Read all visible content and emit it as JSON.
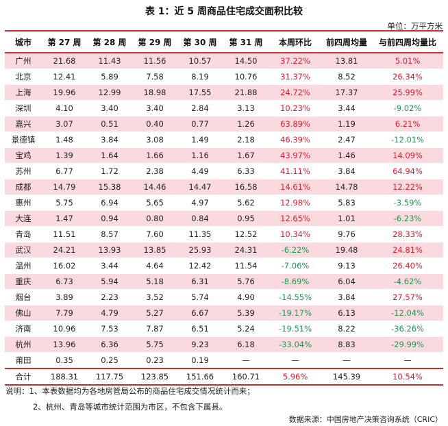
{
  "title": "表 1：近 5 周商品住宅成交面积比较",
  "unit": "单位：万平方米",
  "headers": [
    "城市",
    "第 27 周",
    "第 28 周",
    "第 29 周",
    "第 30 周",
    "第 31 周",
    "本周环比",
    "前四周均量",
    "与前四周均量比"
  ],
  "rows": [
    {
      "city": "广州",
      "w27": "21.68",
      "w28": "11.43",
      "w29": "11.56",
      "w30": "10.57",
      "w31": "14.50",
      "wow": "37.22%",
      "avg4": "13.81",
      "vsavg": "5.01%",
      "hl": true,
      "wow_dir": "up",
      "vs_dir": "up"
    },
    {
      "city": "北京",
      "w27": "12.41",
      "w28": "5.89",
      "w29": "7.58",
      "w30": "8.19",
      "w31": "10.76",
      "wow": "31.37%",
      "avg4": "8.52",
      "vsavg": "26.34%",
      "hl": false,
      "wow_dir": "up",
      "vs_dir": "up"
    },
    {
      "city": "上海",
      "w27": "19.96",
      "w28": "12.99",
      "w29": "18.98",
      "w30": "17.55",
      "w31": "21.88",
      "wow": "24.72%",
      "avg4": "17.37",
      "vsavg": "25.99%",
      "hl": true,
      "wow_dir": "up",
      "vs_dir": "up"
    },
    {
      "city": "深圳",
      "w27": "4.10",
      "w28": "3.40",
      "w29": "3.40",
      "w30": "2.84",
      "w31": "3.13",
      "wow": "10.23%",
      "avg4": "3.44",
      "vsavg": "-9.02%",
      "hl": false,
      "wow_dir": "up",
      "vs_dir": "down"
    },
    {
      "city": "嘉兴",
      "w27": "3.07",
      "w28": "0.51",
      "w29": "0.40",
      "w30": "0.77",
      "w31": "1.26",
      "wow": "63.89%",
      "avg4": "1.19",
      "vsavg": "6.21%",
      "hl": true,
      "wow_dir": "up",
      "vs_dir": "up"
    },
    {
      "city": "景德镇",
      "w27": "1.48",
      "w28": "3.84",
      "w29": "3.08",
      "w30": "1.49",
      "w31": "2.18",
      "wow": "46.39%",
      "avg4": "2.47",
      "vsavg": "-12.01%",
      "hl": false,
      "wow_dir": "up",
      "vs_dir": "down"
    },
    {
      "city": "宝鸡",
      "w27": "1.39",
      "w28": "1.64",
      "w29": "1.66",
      "w30": "1.16",
      "w31": "1.67",
      "wow": "43.97%",
      "avg4": "1.46",
      "vsavg": "14.09%",
      "hl": true,
      "wow_dir": "up",
      "vs_dir": "up"
    },
    {
      "city": "苏州",
      "w27": "6.77",
      "w28": "1.72",
      "w29": "2.38",
      "w30": "4.49",
      "w31": "6.33",
      "wow": "41.11%",
      "avg4": "3.84",
      "vsavg": "64.94%",
      "hl": false,
      "wow_dir": "up",
      "vs_dir": "up"
    },
    {
      "city": "成都",
      "w27": "14.79",
      "w28": "15.38",
      "w29": "14.46",
      "w30": "14.47",
      "w31": "16.58",
      "wow": "14.61%",
      "avg4": "14.78",
      "vsavg": "12.22%",
      "hl": true,
      "wow_dir": "up",
      "vs_dir": "up"
    },
    {
      "city": "惠州",
      "w27": "5.75",
      "w28": "6.94",
      "w29": "5.65",
      "w30": "4.97",
      "w31": "5.62",
      "wow": "12.98%",
      "avg4": "5.83",
      "vsavg": "-3.59%",
      "hl": false,
      "wow_dir": "up",
      "vs_dir": "down"
    },
    {
      "city": "大连",
      "w27": "1.47",
      "w28": "0.94",
      "w29": "0.80",
      "w30": "0.84",
      "w31": "0.95",
      "wow": "12.65%",
      "avg4": "1.01",
      "vsavg": "-6.23%",
      "hl": true,
      "wow_dir": "up",
      "vs_dir": "down"
    },
    {
      "city": "青岛",
      "w27": "11.51",
      "w28": "8.57",
      "w29": "7.60",
      "w30": "11.35",
      "w31": "12.52",
      "wow": "10.34%",
      "avg4": "9.76",
      "vsavg": "28.33%",
      "hl": false,
      "wow_dir": "up",
      "vs_dir": "up"
    },
    {
      "city": "武汉",
      "w27": "24.21",
      "w28": "13.93",
      "w29": "13.85",
      "w30": "25.93",
      "w31": "24.31",
      "wow": "-6.22%",
      "avg4": "19.48",
      "vsavg": "24.81%",
      "hl": true,
      "wow_dir": "down",
      "vs_dir": "up"
    },
    {
      "city": "温州",
      "w27": "16.02",
      "w28": "3.44",
      "w29": "4.64",
      "w30": "12.42",
      "w31": "11.54",
      "wow": "-7.06%",
      "avg4": "9.13",
      "vsavg": "26.40%",
      "hl": false,
      "wow_dir": "down",
      "vs_dir": "up"
    },
    {
      "city": "重庆",
      "w27": "6.73",
      "w28": "5.94",
      "w29": "5.18",
      "w30": "6.31",
      "w31": "5.76",
      "wow": "-8.69%",
      "avg4": "6.04",
      "vsavg": "-4.62%",
      "hl": true,
      "wow_dir": "down",
      "vs_dir": "down"
    },
    {
      "city": "烟台",
      "w27": "3.89",
      "w28": "2.23",
      "w29": "3.52",
      "w30": "5.74",
      "w31": "4.90",
      "wow": "-14.55%",
      "avg4": "3.84",
      "vsavg": "27.57%",
      "hl": false,
      "wow_dir": "down",
      "vs_dir": "up"
    },
    {
      "city": "佛山",
      "w27": "7.79",
      "w28": "4.79",
      "w29": "5.27",
      "w30": "6.67",
      "w31": "5.39",
      "wow": "-19.17%",
      "avg4": "6.13",
      "vsavg": "-12.04%",
      "hl": true,
      "wow_dir": "down",
      "vs_dir": "down"
    },
    {
      "city": "济南",
      "w27": "10.96",
      "w28": "7.53",
      "w29": "7.87",
      "w30": "6.51",
      "w31": "5.24",
      "wow": "-19.51%",
      "avg4": "8.22",
      "vsavg": "-36.26%",
      "hl": false,
      "wow_dir": "down",
      "vs_dir": "down"
    },
    {
      "city": "杭州",
      "w27": "13.96",
      "w28": "6.36",
      "w29": "5.75",
      "w30": "9.23",
      "w31": "6.18",
      "wow": "-33.04%",
      "avg4": "8.83",
      "vsavg": "-29.99%",
      "hl": true,
      "wow_dir": "down",
      "vs_dir": "down"
    },
    {
      "city": "莆田",
      "w27": "0.35",
      "w28": "0.25",
      "w29": "0.23",
      "w30": "0.19",
      "w31": "—",
      "wow": "—",
      "avg4": "—",
      "vsavg": "—",
      "hl": false,
      "wow_dir": "none",
      "vs_dir": "none"
    }
  ],
  "total": {
    "city": "合计",
    "w27": "188.31",
    "w28": "117.75",
    "w29": "123.85",
    "w30": "151.66",
    "w31": "160.71",
    "wow": "5.96%",
    "avg4": "145.39",
    "vsavg": "10.54%",
    "wow_dir": "up",
    "vs_dir": "up"
  },
  "notes": [
    "说明：1、本表数据均为各地房管局公布的商品住宅成交情况统计而来；",
    "2、杭州、青岛等城市统计范围为市区，不包含下属县。"
  ],
  "source": "数据来源：中国房地产决策咨询系统（CRIC）",
  "colors": {
    "accent": "#c62d2d",
    "highlight_row": "#fadadf",
    "positive": "#e8192c",
    "negative": "#1a9b52"
  }
}
